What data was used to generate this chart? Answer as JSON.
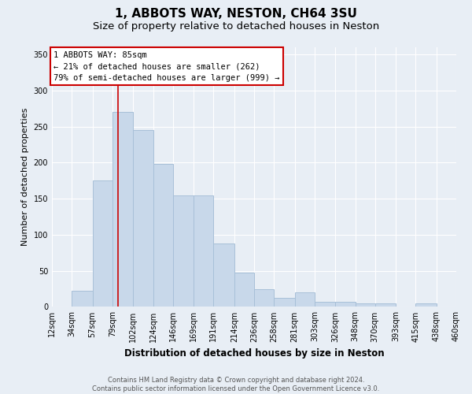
{
  "title": "1, ABBOTS WAY, NESTON, CH64 3SU",
  "subtitle": "Size of property relative to detached houses in Neston",
  "xlabel": "Distribution of detached houses by size in Neston",
  "ylabel": "Number of detached properties",
  "footnote": "Contains HM Land Registry data © Crown copyright and database right 2024.\nContains public sector information licensed under the Open Government Licence v3.0.",
  "bin_labels": [
    "12sqm",
    "34sqm",
    "57sqm",
    "79sqm",
    "102sqm",
    "124sqm",
    "146sqm",
    "169sqm",
    "191sqm",
    "214sqm",
    "236sqm",
    "258sqm",
    "281sqm",
    "303sqm",
    "326sqm",
    "348sqm",
    "370sqm",
    "393sqm",
    "415sqm",
    "438sqm",
    "460sqm"
  ],
  "bar_heights": [
    0,
    22,
    175,
    270,
    245,
    198,
    155,
    155,
    88,
    47,
    25,
    12,
    20,
    7,
    7,
    5,
    5,
    0,
    5,
    0,
    0
  ],
  "bar_color": "#c8d8ea",
  "bar_edge_color": "#a8c0d8",
  "vline_color": "#cc0000",
  "annotation_text": "1 ABBOTS WAY: 85sqm\n← 21% of detached houses are smaller (262)\n79% of semi-detached houses are larger (999) →",
  "annotation_box_facecolor": "white",
  "annotation_box_edgecolor": "#cc0000",
  "ylim": [
    0,
    360
  ],
  "yticks": [
    0,
    50,
    100,
    150,
    200,
    250,
    300,
    350
  ],
  "bg_color": "#e8eef5",
  "grid_color": "#ffffff",
  "title_fontsize": 11,
  "subtitle_fontsize": 9.5,
  "ylabel_fontsize": 8,
  "xlabel_fontsize": 8.5,
  "tick_fontsize": 7,
  "footnote_fontsize": 6
}
